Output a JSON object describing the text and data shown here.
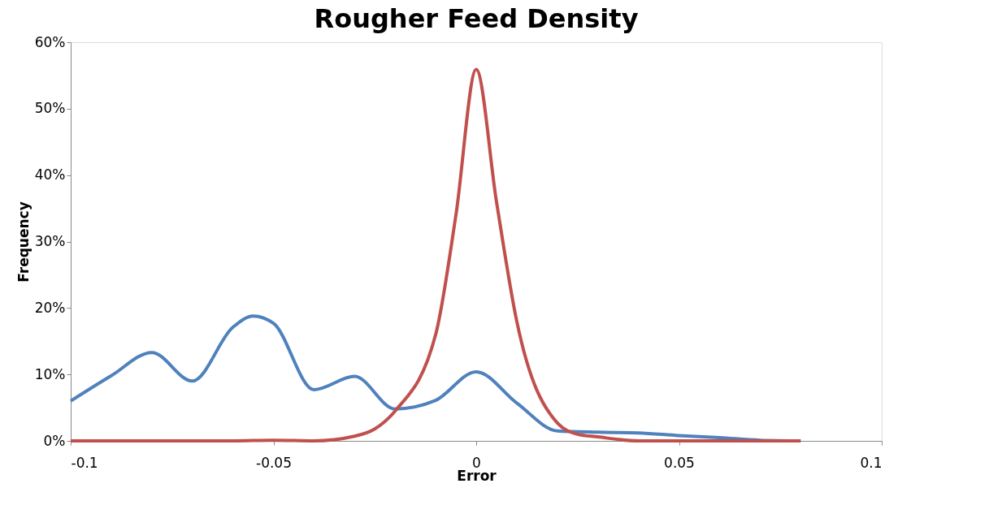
{
  "chart_data": {
    "type": "line",
    "title": "Rougher Feed Density",
    "xlabel": "Error",
    "ylabel": "Frequency",
    "xlim": [
      -0.1,
      0.1
    ],
    "xticks": [
      -0.1,
      -0.05,
      0,
      0.05,
      0.1
    ],
    "ylim": [
      0,
      60
    ],
    "yticks": [
      {
        "value": 0,
        "label": "0%"
      },
      {
        "value": 10,
        "label": "10%"
      },
      {
        "value": 20,
        "label": "20%"
      },
      {
        "value": 30,
        "label": "30%"
      },
      {
        "value": 40,
        "label": "40%"
      },
      {
        "value": 50,
        "label": "50%"
      },
      {
        "value": 60,
        "label": "60%"
      }
    ],
    "grid": false,
    "legend": false,
    "marker": "none",
    "line_style": "solid",
    "series": [
      {
        "color": "#4f81bd",
        "x": [
          -0.1,
          -0.09,
          -0.08,
          -0.07,
          -0.06,
          -0.055,
          -0.05,
          -0.04,
          -0.03,
          -0.02,
          -0.01,
          0,
          0.01,
          0.02,
          0.03,
          0.04,
          0.05,
          0.06,
          0.07,
          0.08
        ],
        "values": [
          6.0,
          9.8,
          13.3,
          9.0,
          17.1,
          18.8,
          17.7,
          7.7,
          9.7,
          4.8,
          6.1,
          10.4,
          5.7,
          1.5,
          1.3,
          1.2,
          0.8,
          0.5,
          0.1,
          0
        ]
      },
      {
        "color": "#c0504d",
        "x": [
          -0.1,
          -0.09,
          -0.08,
          -0.07,
          -0.06,
          -0.05,
          -0.04,
          -0.03,
          -0.025,
          -0.02,
          -0.01,
          -0.005,
          0,
          0.005,
          0.01,
          0.02,
          0.025,
          0.03,
          0.04,
          0.05,
          0.06,
          0.07,
          0.08
        ],
        "values": [
          0,
          0,
          0,
          0,
          0,
          0.1,
          0,
          0.7,
          1.8,
          4.5,
          16,
          34,
          55.9,
          36,
          18,
          2.7,
          1.0,
          0.6,
          0,
          0,
          0,
          0,
          0
        ]
      }
    ]
  }
}
